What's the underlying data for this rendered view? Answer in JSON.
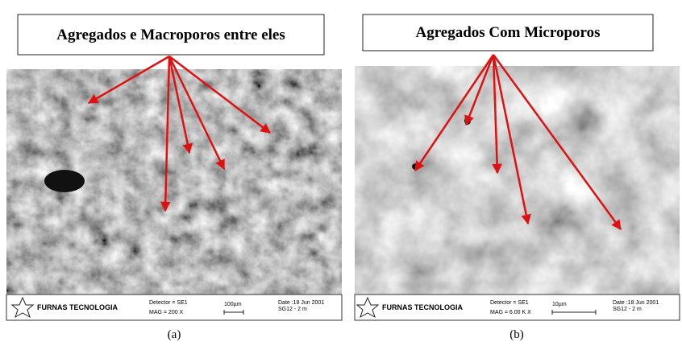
{
  "panels": [
    {
      "label": "Agregados e Macroporos entre eles",
      "logo": "FURNAS TECNOLOGIA",
      "detector": "Detector = SE1",
      "mag": "MAG = 200 X",
      "scale": "100µm",
      "date": "Date :18 Jun 2001",
      "sample": "SG12 - 2 m",
      "caption": "(a)"
    },
    {
      "label": "Agregados Com Microporos",
      "logo": "FURNAS TECNOLOGIA",
      "detector": "Detector = SE1",
      "mag": "MAG = 6.00 K X",
      "scale": "10µm",
      "date": "Date :18 Jun 2001",
      "sample": "SG12 - 2 m",
      "caption": "(b)"
    }
  ]
}
